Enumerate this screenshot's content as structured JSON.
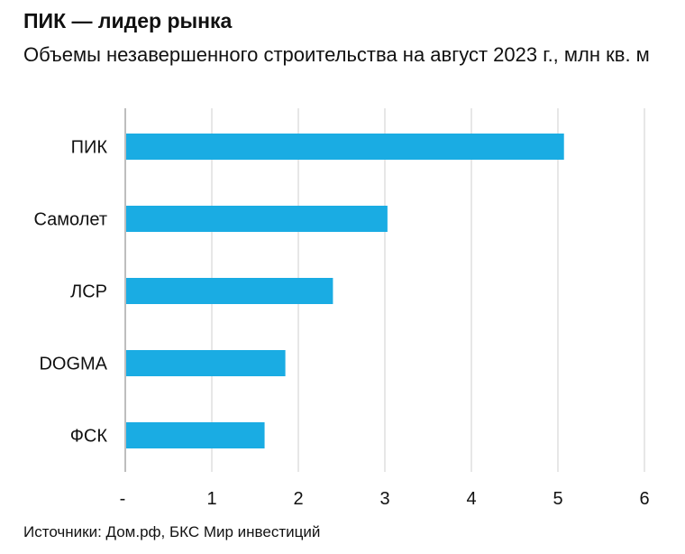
{
  "chart_data": {
    "type": "bar",
    "orientation": "horizontal",
    "title": "ПИК — лидер рынка",
    "subtitle": "Объемы незавершенного строительства на август 2023 г., млн кв. м",
    "categories": [
      "ПИК",
      "Самолет",
      "ЛСР",
      "DOGMA",
      "ФСК"
    ],
    "values": [
      5.07,
      3.03,
      2.4,
      1.85,
      1.61
    ],
    "xlim": [
      0,
      6
    ],
    "xticks": [
      0,
      1,
      2,
      3,
      4,
      5,
      6
    ],
    "xtick_labels": [
      "-",
      "1",
      "2",
      "3",
      "4",
      "5",
      "6"
    ],
    "grid": true,
    "bar_color": "#1aace3",
    "grid_color": "#cfcfcf"
  },
  "source": "Источники: Дом.рф, БКС Мир инвестиций"
}
